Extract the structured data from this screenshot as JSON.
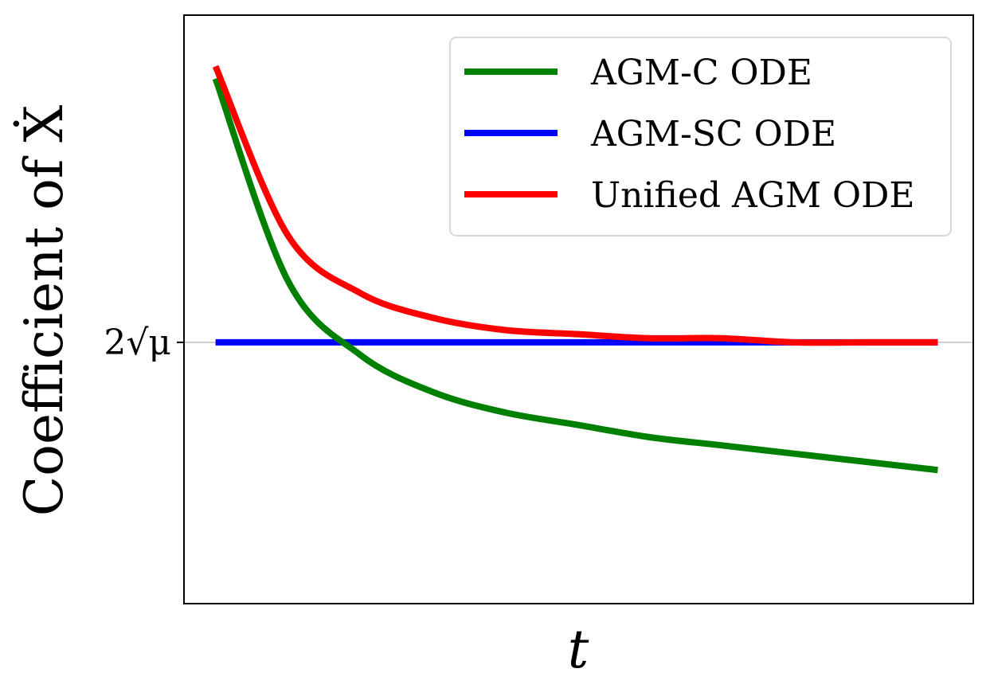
{
  "chart_data": {
    "type": "line",
    "title": "",
    "xlabel": "t",
    "ylabel": "Coefficient of Ẋ",
    "x": [
      0.0,
      0.1,
      0.2,
      0.3,
      0.4,
      0.5,
      0.6,
      0.7,
      0.8,
      0.9,
      1.0
    ],
    "xlim": [
      0.0,
      1.0
    ],
    "ylim": [
      0.0,
      1.0
    ],
    "yticks": [
      {
        "value": 0.27,
        "label": "2√μ"
      }
    ],
    "reference_lines": [
      {
        "axis": "y",
        "value": 0.27,
        "color": "#bfbfbf"
      }
    ],
    "grid": false,
    "legend": "top-right",
    "series": [
      {
        "name": "AGM-C ODE",
        "color": "#008000",
        "values": [
          0.91,
          0.42,
          0.24,
          0.15,
          0.1,
          0.07,
          0.04,
          0.02,
          0.0,
          -0.02,
          -0.04
        ]
      },
      {
        "name": "AGM-SC ODE",
        "color": "#0000ff",
        "values": [
          0.27,
          0.27,
          0.27,
          0.27,
          0.27,
          0.27,
          0.27,
          0.27,
          0.27,
          0.27,
          0.27
        ]
      },
      {
        "name": "Unified AGM ODE",
        "color": "#ff0000",
        "values": [
          0.94,
          0.53,
          0.39,
          0.33,
          0.3,
          0.29,
          0.28,
          0.28,
          0.27,
          0.27,
          0.27
        ]
      }
    ]
  }
}
